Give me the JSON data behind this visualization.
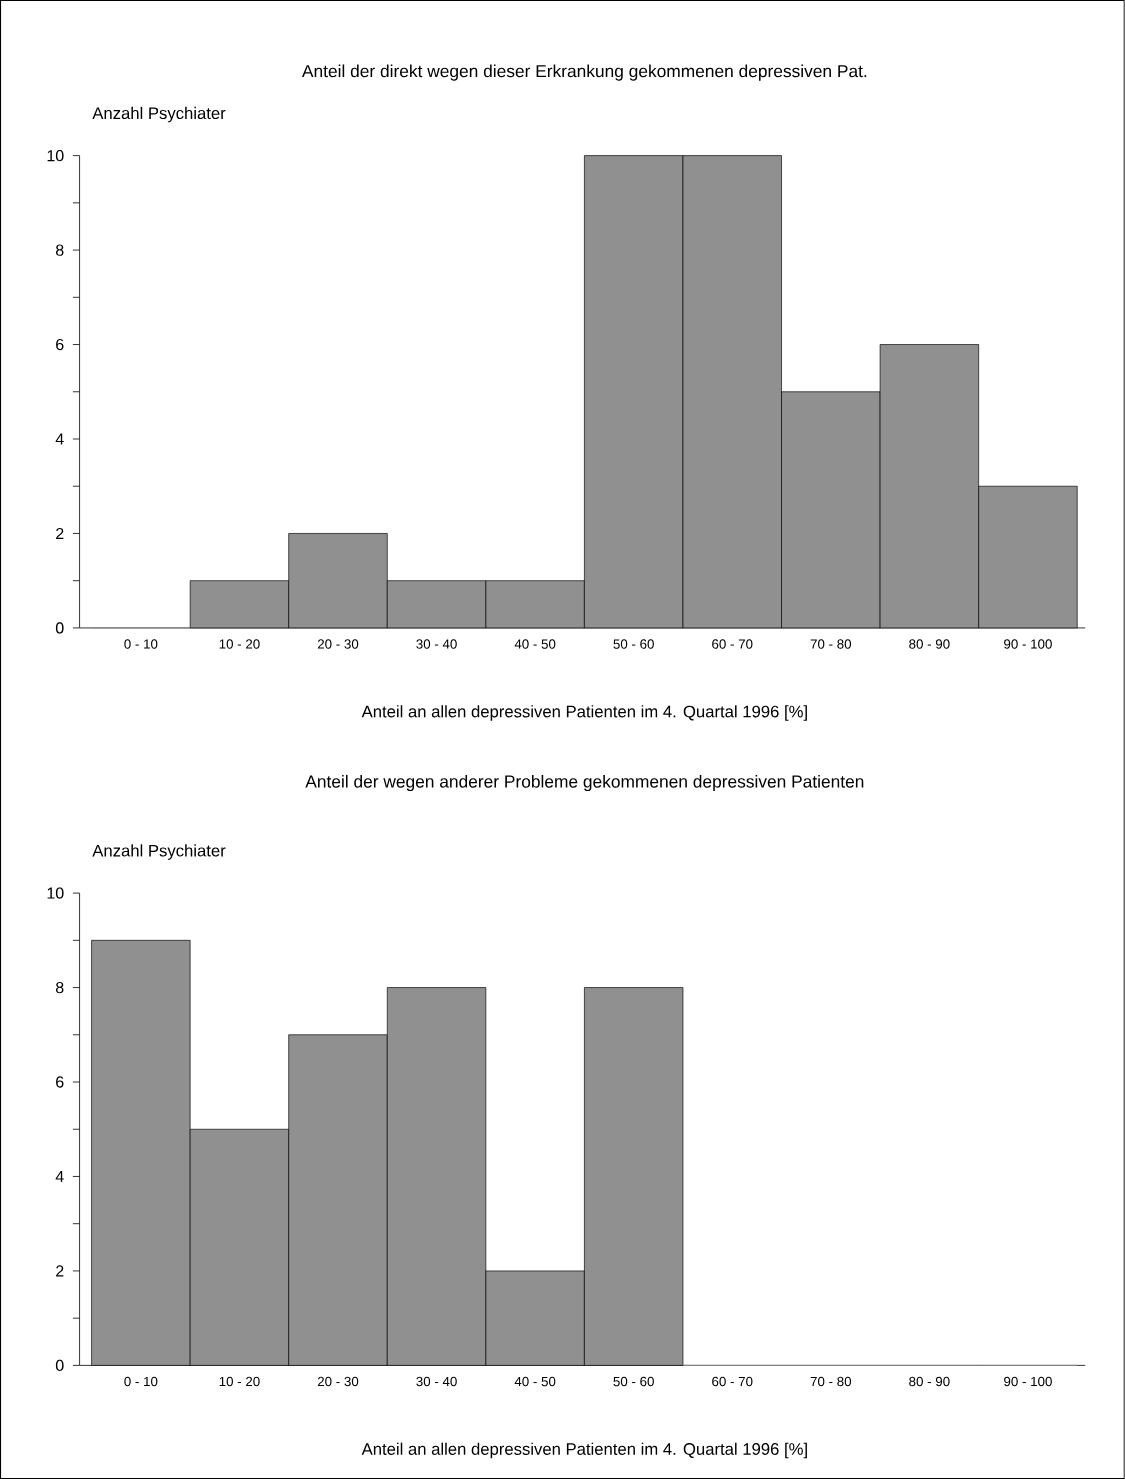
{
  "chart_data": [
    {
      "type": "bar",
      "title": "Anteil der direkt wegen dieser Erkrankung gekommenen depressiven Pat.",
      "ylabel": "Anzahl Psychiater",
      "xlabel": "Anteil an allen depressiven Patienten im 4. Quartal 1996 [%]",
      "categories": [
        "0 - 10",
        "10 - 20",
        "20 - 30",
        "30 - 40",
        "40 - 50",
        "50 - 60",
        "60 - 70",
        "70 - 80",
        "80 - 90",
        "90 - 100"
      ],
      "values": [
        0,
        1,
        2,
        1,
        1,
        10,
        10,
        5,
        6,
        3
      ],
      "color": "#909090",
      "ylim": [
        0,
        10
      ],
      "yticks": [
        0,
        {
          "value": 1,
          "label": null
        },
        2,
        {
          "value": 3,
          "label": null
        },
        4,
        {
          "value": 5,
          "label": null
        },
        6,
        {
          "value": 7,
          "label": null
        },
        8,
        {
          "value": 9,
          "label": null
        },
        10
      ]
    },
    {
      "type": "bar",
      "title": "Anteil der wegen anderer Probleme gekommenen depressiven Patienten",
      "ylabel": "Anzahl Psychiater",
      "xlabel": "Anteil an allen depressiven Patienten im 4. Quartal 1996 [%]",
      "categories": [
        "0 - 10",
        "10 - 20",
        "20 - 30",
        "30 - 40",
        "40 - 50",
        "50 - 60",
        "60 - 70",
        "70 - 80",
        "80 - 90",
        "90 - 100"
      ],
      "values": [
        9,
        5,
        7,
        8,
        2,
        8,
        0,
        0,
        0,
        0
      ],
      "color": "#909090",
      "ylim": [
        0,
        10
      ],
      "yticks": [
        0,
        {
          "value": 1,
          "label": null
        },
        2,
        {
          "value": 3,
          "label": null
        },
        4,
        {
          "value": 5,
          "label": null
        },
        6,
        {
          "value": 7,
          "label": null
        },
        8,
        {
          "value": 9,
          "label": null
        },
        10
      ]
    }
  ]
}
